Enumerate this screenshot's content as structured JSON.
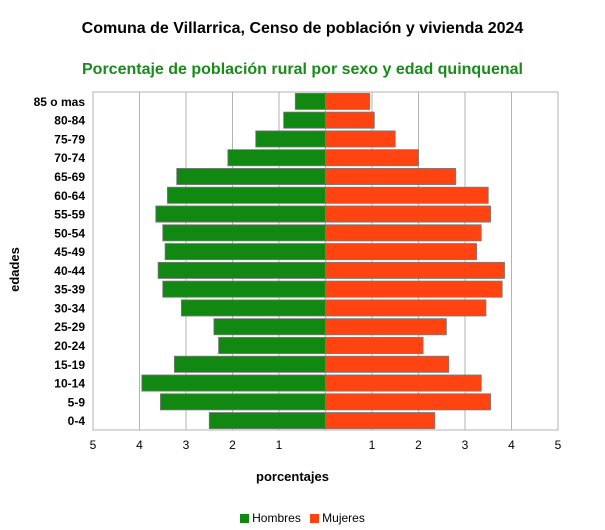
{
  "title": "Comuna de Villarrica, Censo de población y vivienda 2024",
  "subtitle": "Porcentaje de población rural por sexo y edad quinquenal",
  "chart_data": {
    "type": "bar",
    "orientation": "horizontal-pyramid",
    "title": "Comuna de Villarrica, Censo de población y vivienda 2024",
    "subtitle": "Porcentaje de población rural por sexo y edad quinquenal",
    "xlabel": "porcentajes",
    "ylabel": "edades",
    "categories": [
      "0-4",
      "5-9",
      "10-14",
      "15-19",
      "20-24",
      "25-29",
      "30-34",
      "35-39",
      "40-44",
      "45-49",
      "50-54",
      "55-59",
      "60-64",
      "65-69",
      "70-74",
      "75-79",
      "80-84",
      "85 o mas"
    ],
    "xlim": [
      -5,
      5
    ],
    "xtick_values": [
      -5,
      -4,
      -3,
      -2,
      -1,
      1,
      2,
      3,
      4,
      5
    ],
    "xtick_labels": [
      "5",
      "4",
      "3",
      "2",
      "1",
      "1",
      "2",
      "3",
      "4",
      "5"
    ],
    "grid": "vertical",
    "legend_position": "bottom",
    "series": [
      {
        "name": "Hombres",
        "color": "#118811",
        "values": [
          2.5,
          3.55,
          3.95,
          3.25,
          2.3,
          2.4,
          3.1,
          3.5,
          3.6,
          3.45,
          3.5,
          3.65,
          3.4,
          3.2,
          2.1,
          1.5,
          0.9,
          0.65
        ]
      },
      {
        "name": "Mujeres",
        "color": "#ff4411",
        "values": [
          2.35,
          3.55,
          3.35,
          2.65,
          2.1,
          2.6,
          3.45,
          3.8,
          3.85,
          3.25,
          3.35,
          3.55,
          3.5,
          2.8,
          2.0,
          1.5,
          1.05,
          0.95
        ]
      }
    ]
  }
}
